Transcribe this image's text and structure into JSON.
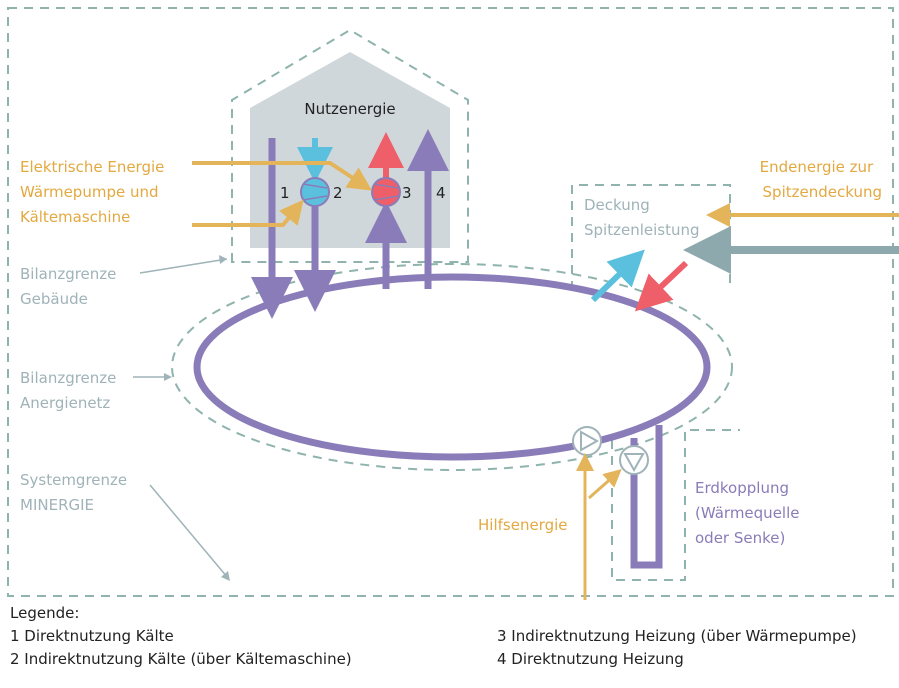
{
  "labels": {
    "nutzenergie": "Nutzenergie",
    "el_line1": "Elektrische Energie",
    "el_line2": "Wärmepumpe und",
    "el_line3": "Kältemaschine",
    "end_line1": "Endenergie zur",
    "end_line2": "Spitzendeckung",
    "deck_line1": "Deckung",
    "deck_line2": "Spitzenleistung",
    "bg_geb_line1": "Bilanzgrenze",
    "bg_geb_line2": "Gebäude",
    "bg_an_line1": "Bilanzgrenze",
    "bg_an_line2": "Anergienetz",
    "sys_line1": "Systemgrenze",
    "sys_line2": "MINERGIE",
    "hilfsenergie": "Hilfsenergie",
    "erd_line1": "Erdkopplung",
    "erd_line2": "(Wärmequelle",
    "erd_line3": "oder Senke)",
    "n1": "1",
    "n2": "2",
    "n3": "3",
    "n4": "4"
  },
  "legend": {
    "title": "Legende:",
    "items": [
      "1 Direktnutzung Kälte",
      "2 Indirektnutzung Kälte (über Kältemaschine)",
      "3 Indirektnutzung Heizung (über Wärmepumpe)",
      "4 Direktnutzung Heizung"
    ]
  },
  "colors": {
    "dash": "#8fb3ad",
    "purple": "#8a7cb8",
    "orange": "#e3b45a",
    "blue": "#5bc0de",
    "red": "#ef5f6a",
    "grey_arrow": "#8ea9ad",
    "house": "#cfd7db",
    "label_grey": "#9fb3b8",
    "label_purple": "#8a7cb8",
    "label_orange": "#e3a941"
  },
  "icons": [
    "pump-icon",
    "compressor-icon",
    "arrow-icon"
  ]
}
